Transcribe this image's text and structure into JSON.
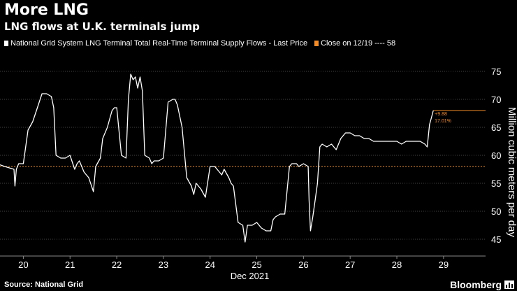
{
  "title": "More LNG",
  "subtitle": "LNG flows at U.K. terminals jump",
  "legend": [
    {
      "label": "National Grid System LNG Terminal Total Real-Time Terminal Supply Flows - Last Price",
      "color": "#ffffff"
    },
    {
      "label": "Close on 12/19 ---- 58",
      "color": "#f28c28"
    }
  ],
  "source": "Source: National Grid",
  "brand": "Bloomberg",
  "colors": {
    "series": "#ffffff",
    "reference": "#f28c28",
    "grid": "#444444",
    "background": "#000000"
  },
  "chart_data": {
    "type": "line",
    "xlabel": "Dec 2021",
    "ylabel": "Million cubic meters per day",
    "x_tick_labels": [
      "20",
      "21",
      "22",
      "23",
      "24",
      "25",
      "26",
      "27",
      "28",
      "29"
    ],
    "y_tick_labels": [
      "45",
      "50",
      "55",
      "60",
      "65",
      "70",
      "75"
    ],
    "xlim": [
      19.5,
      29.9
    ],
    "ylim": [
      42,
      77
    ],
    "y_axis_side": "right",
    "grid": "horizontal dotted",
    "reference_line": {
      "value": 58,
      "label": "Close on 12/19"
    },
    "annotations": [
      {
        "text": "+9.88",
        "color": "#f28c28"
      },
      {
        "text": "17.01%",
        "color": "#f28c28"
      }
    ],
    "series": [
      {
        "name": "National Grid System LNG Terminal Total Real-Time Terminal Supply Flows - Last Price",
        "x": [
          19.5,
          19.6,
          19.8,
          19.82,
          19.85,
          19.9,
          20.0,
          20.1,
          20.2,
          20.3,
          20.4,
          20.5,
          20.6,
          20.65,
          20.7,
          20.8,
          20.9,
          21.0,
          21.1,
          21.15,
          21.2,
          21.3,
          21.4,
          21.5,
          21.55,
          21.65,
          21.7,
          21.8,
          21.85,
          21.9,
          21.95,
          22.0,
          22.1,
          22.2,
          22.25,
          22.3,
          22.35,
          22.4,
          22.45,
          22.5,
          22.55,
          22.6,
          22.7,
          22.75,
          22.8,
          22.9,
          23.0,
          23.1,
          23.2,
          23.25,
          23.3,
          23.4,
          23.5,
          23.6,
          23.65,
          23.7,
          23.8,
          23.9,
          24.0,
          24.1,
          24.2,
          24.25,
          24.3,
          24.4,
          24.45,
          24.5,
          24.6,
          24.7,
          24.75,
          24.8,
          24.9,
          25.0,
          25.1,
          25.2,
          25.3,
          25.35,
          25.4,
          25.5,
          25.6,
          25.7,
          25.75,
          25.8,
          25.85,
          25.9,
          26.0,
          26.1,
          26.12,
          26.15,
          26.2,
          26.25,
          26.3,
          26.35,
          26.4,
          26.5,
          26.6,
          26.7,
          26.8,
          26.9,
          27.0,
          27.1,
          27.2,
          27.3,
          27.4,
          27.5,
          27.6,
          27.7,
          27.8,
          27.9,
          28.0,
          28.1,
          28.2,
          28.3,
          28.4,
          28.5,
          28.6,
          28.65,
          28.7,
          28.75,
          28.78
        ],
        "values": [
          58.3,
          58.0,
          57.5,
          54.5,
          57.5,
          58.5,
          58.5,
          64.5,
          66.0,
          68.5,
          71.0,
          71.0,
          70.5,
          68.5,
          60.0,
          59.5,
          59.5,
          60.0,
          57.5,
          58.5,
          59.0,
          57.0,
          56.0,
          53.5,
          58.0,
          59.5,
          63.0,
          65.0,
          66.5,
          68.0,
          68.5,
          68.5,
          60.0,
          59.5,
          70.0,
          74.5,
          73.5,
          74.0,
          72.0,
          74.0,
          71.5,
          60.0,
          59.5,
          58.5,
          59.0,
          59.0,
          59.5,
          69.5,
          70.0,
          70.0,
          69.0,
          65.0,
          56.0,
          54.5,
          53.0,
          55.0,
          54.0,
          52.5,
          58.0,
          58.0,
          57.0,
          56.5,
          57.5,
          56.0,
          55.0,
          54.5,
          48.0,
          47.5,
          44.5,
          47.5,
          47.5,
          48.0,
          47.0,
          46.5,
          46.5,
          48.5,
          49.0,
          49.5,
          49.5,
          58.0,
          58.5,
          58.5,
          58.5,
          58.0,
          58.5,
          58.0,
          52.0,
          46.5,
          49.0,
          52.0,
          55.0,
          61.5,
          62.0,
          61.5,
          62.0,
          61.0,
          63.0,
          64.0,
          64.0,
          63.5,
          63.5,
          63.0,
          63.0,
          62.5,
          62.5,
          62.5,
          62.5,
          62.5,
          62.5,
          62.0,
          62.5,
          62.5,
          62.5,
          62.5,
          62.0,
          61.5,
          65.5,
          67.0,
          68.0
        ]
      }
    ]
  }
}
